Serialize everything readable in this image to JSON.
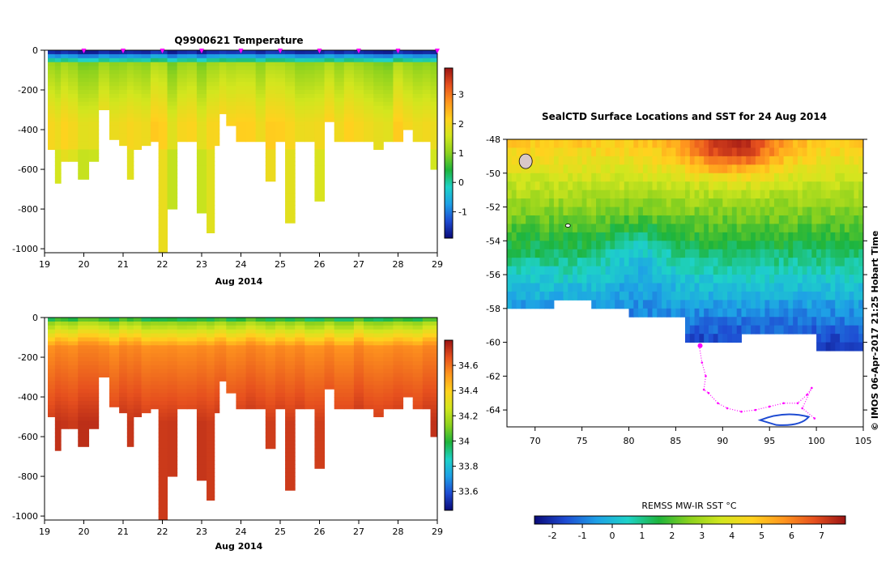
{
  "chart_data": [
    {
      "type": "heatmap",
      "title": "Q9900621  Temperature",
      "xlabel": "Aug 2014",
      "ylabel": "",
      "x_ticks": [
        "19",
        "20",
        "21",
        "22",
        "23",
        "24",
        "25",
        "26",
        "27",
        "28",
        "29"
      ],
      "x_range": [
        19,
        29
      ],
      "ylim": [
        -1020,
        0
      ],
      "y_ticks": [
        "0",
        "-200",
        "-400",
        "-600",
        "-800",
        "-1000"
      ],
      "colorbar": {
        "min": -1.9,
        "max": 3.9,
        "ticks": [
          "-1",
          "0",
          "1",
          "2",
          "3"
        ],
        "colors": [
          "#0a0a78",
          "#1e4bd2",
          "#1ea0e6",
          "#1ed2c8",
          "#1eb43c",
          "#8cd21e",
          "#d2e61e",
          "#ffd21e",
          "#ff961e",
          "#e6501e",
          "#9b1414"
        ]
      },
      "profile_times": [
        19.2,
        19.33,
        19.5,
        19.7,
        20.0,
        20.25,
        20.5,
        20.8,
        21.0,
        21.2,
        21.33,
        21.6,
        21.8,
        22.0,
        22.25,
        22.5,
        22.75,
        23.0,
        23.25,
        23.4,
        23.5,
        23.75,
        24.0,
        24.25,
        24.5,
        24.75,
        25.0,
        25.25,
        25.5,
        25.75,
        26.0,
        26.25,
        26.5,
        26.75,
        27.0,
        27.25,
        27.5,
        27.75,
        28.0,
        28.25,
        28.5,
        28.75,
        28.9,
        29.0
      ],
      "profile_max_depth": [
        500,
        670,
        560,
        560,
        650,
        560,
        300,
        450,
        480,
        650,
        500,
        480,
        460,
        1020,
        800,
        460,
        460,
        820,
        920,
        480,
        320,
        380,
        460,
        460,
        460,
        660,
        460,
        870,
        460,
        460,
        760,
        360,
        460,
        460,
        460,
        460,
        500,
        460,
        460,
        400,
        460,
        460,
        600,
        600
      ],
      "surface_value": -1.6,
      "markers_x": [
        20.0,
        21.0,
        22.0,
        23.0,
        24.0,
        25.0,
        26.0,
        27.0,
        28.0,
        29.0
      ]
    },
    {
      "type": "heatmap",
      "title": "",
      "xlabel": "Aug 2014",
      "ylabel": "",
      "x_ticks": [
        "19",
        "20",
        "21",
        "22",
        "23",
        "24",
        "25",
        "26",
        "27",
        "28",
        "29"
      ],
      "x_range": [
        19,
        29
      ],
      "ylim": [
        -1020,
        0
      ],
      "y_ticks": [
        "0",
        "-200",
        "-400",
        "-600",
        "-800",
        "-1000"
      ],
      "colorbar": {
        "min": 33.45,
        "max": 34.8,
        "ticks": [
          "33.6",
          "33.8",
          "34",
          "34.2",
          "34.4",
          "34.6"
        ],
        "colors": [
          "#0a0a78",
          "#1e4bd2",
          "#1ea0e6",
          "#1ed2c8",
          "#1eb43c",
          "#8cd21e",
          "#d2e61e",
          "#ffd21e",
          "#ff961e",
          "#e6501e",
          "#9b1414"
        ]
      },
      "surface_value": 34.0,
      "deep_value": 34.72
    },
    {
      "type": "heatmap",
      "title": "SealCTD Surface Locations and SST for 24 Aug 2014",
      "xlabel": "",
      "ylabel": "",
      "x_range": [
        67,
        105
      ],
      "y_range": [
        -65,
        -48
      ],
      "x_ticks": [
        "70",
        "75",
        "80",
        "85",
        "90",
        "95",
        "100",
        "105"
      ],
      "y_ticks": [
        "-48",
        "-50",
        "-52",
        "-54",
        "-56",
        "-58",
        "-60",
        "-62",
        "-64"
      ],
      "colorbar": {
        "label": "REMSS MW-IR SST °C",
        "min": -2.6,
        "max": 7.8,
        "ticks": [
          "-2",
          "-1",
          "0",
          "1",
          "2",
          "3",
          "4",
          "5",
          "6",
          "7"
        ],
        "colors": [
          "#0a0a78",
          "#1e4bd2",
          "#1ea0e6",
          "#1ed2c8",
          "#1eb43c",
          "#8cd21e",
          "#d2e61e",
          "#ffd21e",
          "#ff961e",
          "#e6501e",
          "#9b1414"
        ]
      },
      "seal_track": [
        [
          87.5,
          -60.2
        ],
        [
          87.8,
          -61.2
        ],
        [
          88.2,
          -62.0
        ],
        [
          88.0,
          -62.8
        ],
        [
          88.5,
          -63.0
        ],
        [
          89.5,
          -63.6
        ],
        [
          90.5,
          -63.9
        ],
        [
          92.0,
          -64.1
        ],
        [
          93.5,
          -64.0
        ],
        [
          95.0,
          -63.8
        ],
        [
          96.5,
          -63.6
        ],
        [
          98.0,
          -63.6
        ],
        [
          99.0,
          -63.1
        ],
        [
          99.5,
          -62.7
        ],
        [
          98.5,
          -63.9
        ],
        [
          99.8,
          -64.5
        ]
      ],
      "surface_location": [
        87.6,
        -60.2
      ]
    }
  ],
  "credit": "© IMOS 06-Apr-2017 21:25 Hobart Time"
}
